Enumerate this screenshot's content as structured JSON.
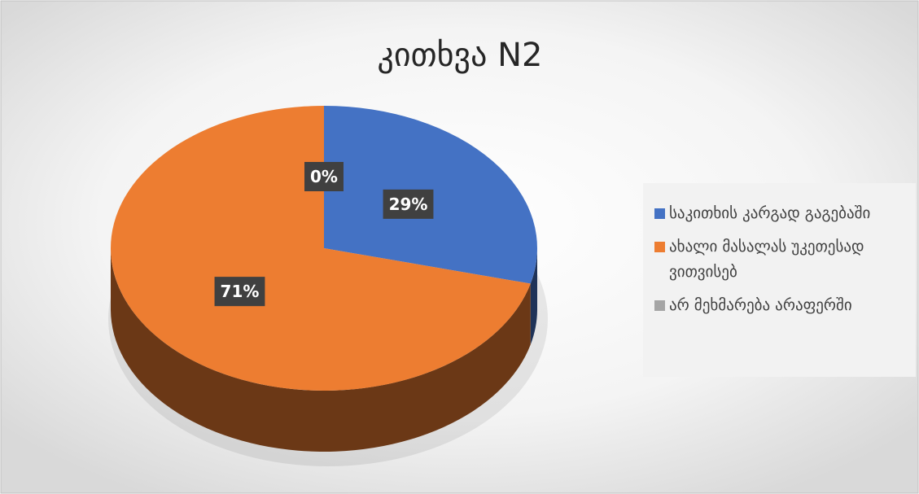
{
  "chart_data": {
    "type": "pie",
    "title": "კითხვა N2",
    "categories": [
      "საკითხის კარგად გაგებაში",
      "ახალი მასალას უკეთესად ვითვისებ",
      "არ მეხმარება არაფერში"
    ],
    "values": [
      29,
      71,
      0
    ],
    "value_labels": [
      "29%",
      "71%",
      "0%"
    ],
    "colors": [
      "#4472c4",
      "#ed7d31",
      "#a5a5a5"
    ],
    "legend": "right"
  }
}
